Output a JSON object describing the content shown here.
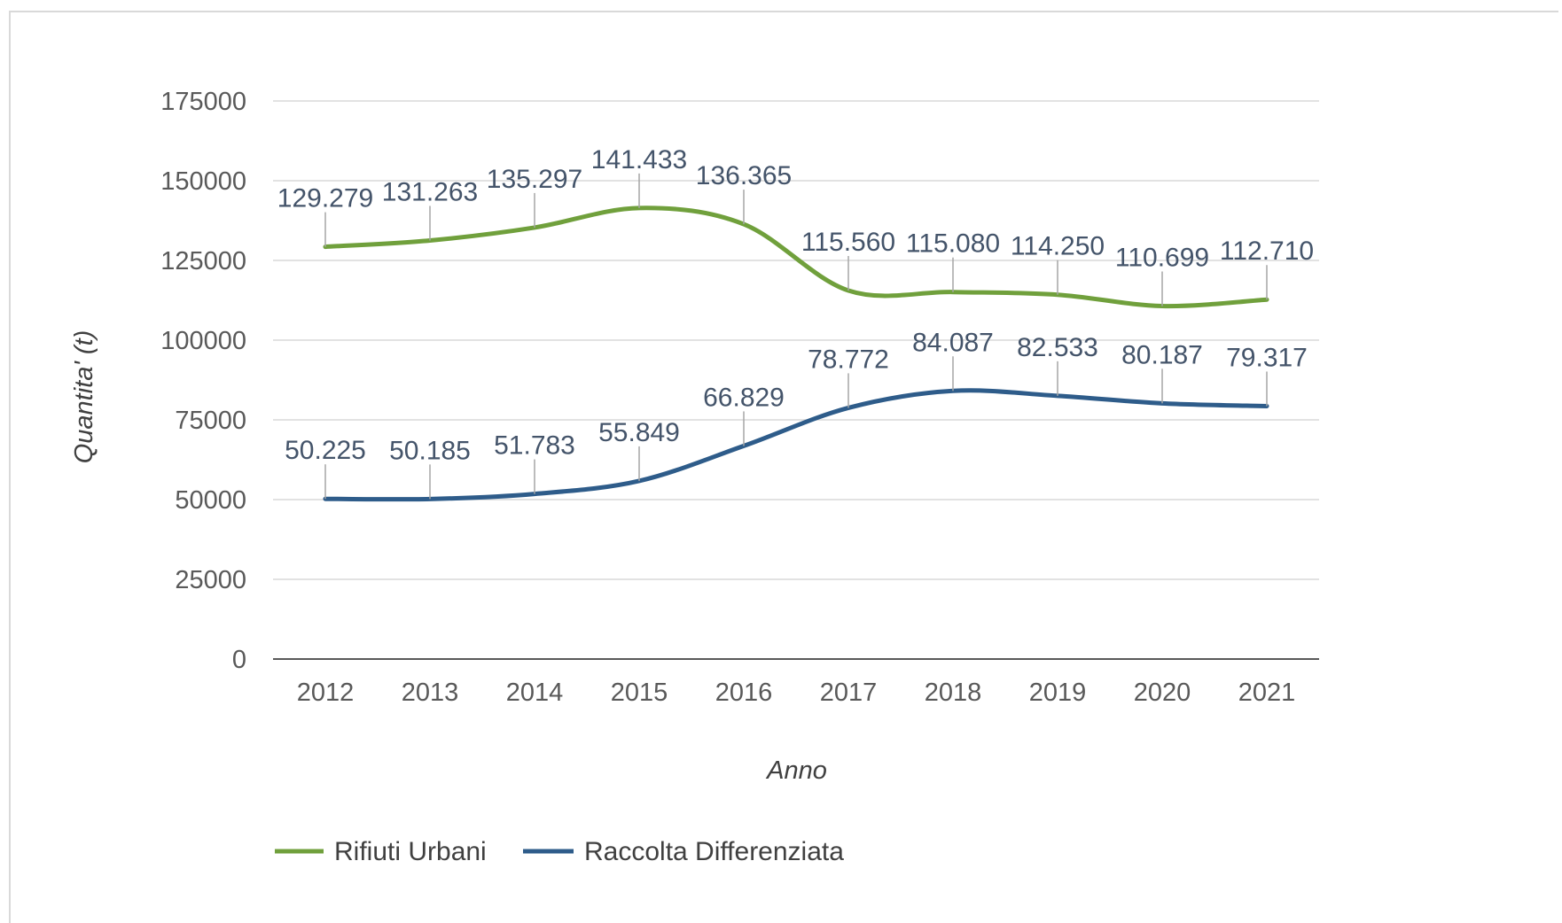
{
  "chart_data": {
    "type": "line",
    "smooth": true,
    "title": "",
    "xlabel": "Anno",
    "ylabel": "Quantita' (t)",
    "categories": [
      "2012",
      "2013",
      "2014",
      "2015",
      "2016",
      "2017",
      "2018",
      "2019",
      "2020",
      "2021"
    ],
    "ylim": [
      0,
      175000
    ],
    "yticks": [
      0,
      25000,
      50000,
      75000,
      100000,
      125000,
      150000,
      175000
    ],
    "ytick_labels": [
      "0",
      "25000",
      "50000",
      "75000",
      "100000",
      "125000",
      "150000",
      "175000"
    ],
    "grid": true,
    "legend_position": "bottom-left",
    "series": [
      {
        "name": "Rifiuti Urbani",
        "color": "#70a03c",
        "values": [
          129279,
          131263,
          135297,
          141433,
          136365,
          115560,
          115080,
          114250,
          110699,
          112710
        ],
        "labels": [
          "129.279",
          "131.263",
          "135.297",
          "141.433",
          "136.365",
          "115.560",
          "115.080",
          "114.250",
          "110.699",
          "112.710"
        ]
      },
      {
        "name": "Raccolta Differenziata",
        "color": "#2e5c8a",
        "values": [
          50225,
          50185,
          51783,
          55849,
          66829,
          78772,
          84087,
          82533,
          80187,
          79317
        ],
        "labels": [
          "50.225",
          "50.185",
          "51.783",
          "55.849",
          "66.829",
          "78.772",
          "84.087",
          "82.533",
          "80.187",
          "79.317"
        ]
      }
    ]
  }
}
